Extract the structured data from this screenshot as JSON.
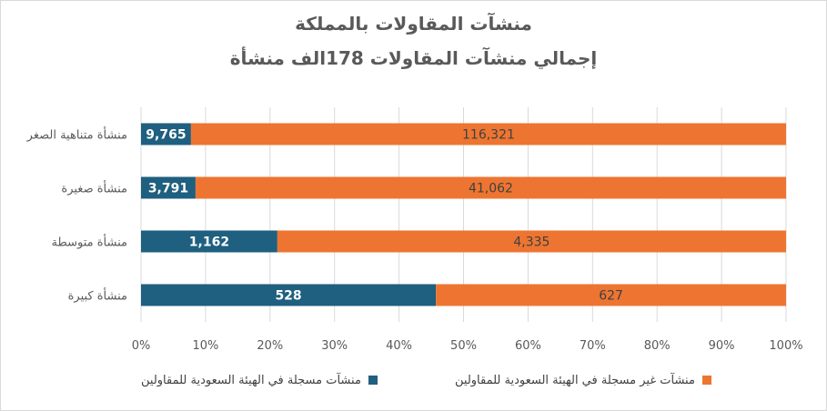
{
  "chart_data": {
    "type": "bar",
    "orientation": "horizontal",
    "stacked": "percent",
    "title": "منشآت المقاولات بالمملكة",
    "subtitle": "إجمالي منشآت المقاولات 178الف منشأة",
    "categories": [
      "منشأة متناهية الصغر",
      "منشأة صغيرة",
      "منشأة متوسطة",
      "منشأة كبيرة"
    ],
    "series": [
      {
        "name": "منشآت مسجلة في الهيئة السعودية للمقاولين",
        "color": "#1f5f7f",
        "values": [
          9765,
          3791,
          1162,
          528
        ],
        "labels": [
          "9,765",
          "3,791",
          "1,162",
          "528"
        ]
      },
      {
        "name": "منشآت غير مسجلة في الهيئة السعودية للمقاولين",
        "color": "#ed7531",
        "values": [
          116321,
          41062,
          4335,
          627
        ],
        "labels": [
          "116,321",
          "41,062",
          "4,335",
          "627"
        ]
      }
    ],
    "x_ticks": [
      "0%",
      "10%",
      "20%",
      "30%",
      "40%",
      "50%",
      "60%",
      "70%",
      "80%",
      "90%",
      "100%"
    ],
    "xlim": [
      0,
      100
    ],
    "grid": true,
    "legend_position": "bottom"
  }
}
